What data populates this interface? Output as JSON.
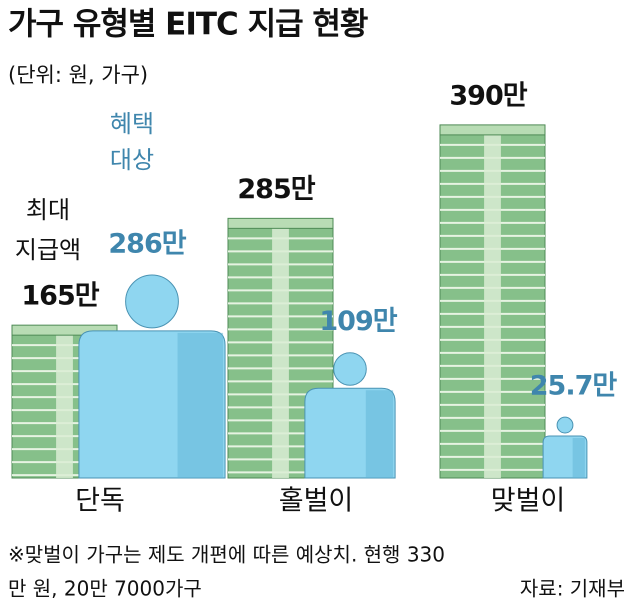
{
  "chart_data": {
    "type": "bar",
    "title": "가구 유형별 EITC 지급 현황",
    "subtitle": "(단위: 원, 가구)",
    "categories": [
      "단독",
      "홀벌이",
      "맞벌이"
    ],
    "series": [
      {
        "name": "최대 지급액",
        "color": "#86c08a",
        "values": [
          165,
          285,
          390
        ],
        "value_labels": [
          "165만",
          "285만",
          "390만"
        ]
      },
      {
        "name": "혜택 대상",
        "color": "#8fd6f0",
        "values": [
          286,
          109,
          25.7
        ],
        "value_labels": [
          "286만",
          "109만",
          "25.7만"
        ]
      }
    ],
    "max_label": [
      "최대",
      "지급액"
    ],
    "target_label": [
      "혜택",
      "대상"
    ],
    "footnote": [
      "※맞벌이 가구는 제도 개편에 따른 예상치. 현행 330",
      "만 원, 20만 7000가구"
    ],
    "source": "자료: 기재부"
  }
}
